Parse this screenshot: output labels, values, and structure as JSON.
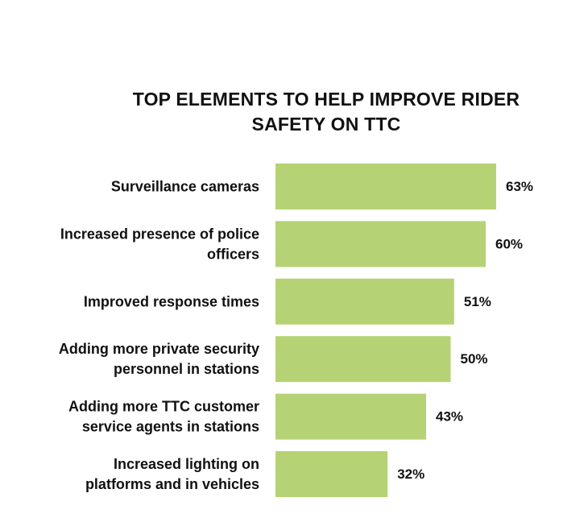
{
  "chart_data": {
    "type": "bar",
    "orientation": "horizontal",
    "title_lines": [
      "TOP ELEMENTS TO HELP IMPROVE RIDER",
      "SAFETY ON TTC"
    ],
    "categories": [
      [
        "Surveillance cameras"
      ],
      [
        "Increased presence of police",
        "officers"
      ],
      [
        "Improved response times"
      ],
      [
        "Adding more private security",
        "personnel in stations"
      ],
      [
        "Adding more TTC customer",
        "service agents in stations"
      ],
      [
        "Increased lighting on",
        "platforms and in vehicles"
      ]
    ],
    "values": [
      63,
      60,
      51,
      50,
      43,
      32
    ],
    "value_labels": [
      "63%",
      "60%",
      "51%",
      "50%",
      "43%",
      "32%"
    ],
    "unit": "%",
    "xlim": [
      0,
      100
    ],
    "grid": false,
    "legend": "none",
    "bar_color": "#b5d374"
  }
}
